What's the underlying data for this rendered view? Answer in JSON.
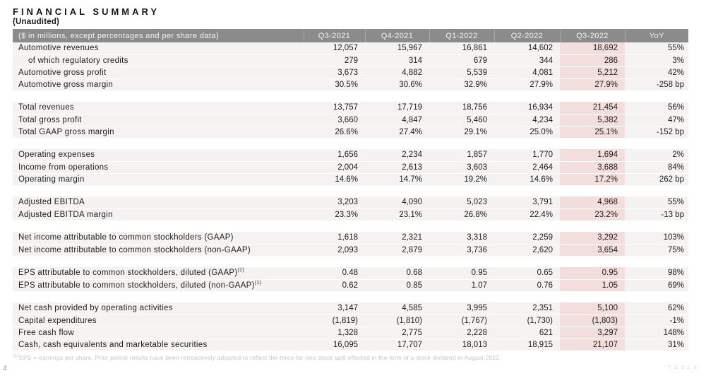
{
  "title": "FINANCIAL SUMMARY",
  "subtitle": "(Unaudited)",
  "table": {
    "label_header": "($ in millions, except percentages and per share data)",
    "columns": [
      "Q3-2021",
      "Q4-2021",
      "Q1-2022",
      "Q2-2022",
      "Q3-2022",
      "YoY"
    ],
    "highlight_column": "Q3-2022",
    "groups": [
      {
        "rows": [
          {
            "label": "Automotive revenues",
            "indent": false,
            "sup": "",
            "values": [
              "12,057",
              "15,967",
              "16,861",
              "14,602",
              "18,692",
              "55%"
            ]
          },
          {
            "label": "of which regulatory credits",
            "indent": true,
            "sup": "",
            "values": [
              "279",
              "314",
              "679",
              "344",
              "286",
              "3%"
            ]
          },
          {
            "label": "Automotive gross profit",
            "indent": false,
            "sup": "",
            "values": [
              "3,673",
              "4,882",
              "5,539",
              "4,081",
              "5,212",
              "42%"
            ]
          },
          {
            "label": "Automotive gross margin",
            "indent": false,
            "sup": "",
            "values": [
              "30.5%",
              "30.6%",
              "32.9%",
              "27.9%",
              "27.9%",
              "-258 bp"
            ]
          }
        ]
      },
      {
        "rows": [
          {
            "label": "Total revenues",
            "indent": false,
            "sup": "",
            "values": [
              "13,757",
              "17,719",
              "18,756",
              "16,934",
              "21,454",
              "56%"
            ]
          },
          {
            "label": "Total gross profit",
            "indent": false,
            "sup": "",
            "values": [
              "3,660",
              "4,847",
              "5,460",
              "4,234",
              "5,382",
              "47%"
            ]
          },
          {
            "label": "Total GAAP gross margin",
            "indent": false,
            "sup": "",
            "values": [
              "26.6%",
              "27.4%",
              "29.1%",
              "25.0%",
              "25.1%",
              "-152 bp"
            ]
          }
        ]
      },
      {
        "rows": [
          {
            "label": "Operating expenses",
            "indent": false,
            "sup": "",
            "values": [
              "1,656",
              "2,234",
              "1,857",
              "1,770",
              "1,694",
              "2%"
            ]
          },
          {
            "label": "Income from operations",
            "indent": false,
            "sup": "",
            "values": [
              "2,004",
              "2,613",
              "3,603",
              "2,464",
              "3,688",
              "84%"
            ]
          },
          {
            "label": "Operating margin",
            "indent": false,
            "sup": "",
            "values": [
              "14.6%",
              "14.7%",
              "19.2%",
              "14.6%",
              "17.2%",
              "262 bp"
            ]
          }
        ]
      },
      {
        "rows": [
          {
            "label": "Adjusted EBITDA",
            "indent": false,
            "sup": "",
            "values": [
              "3,203",
              "4,090",
              "5,023",
              "3,791",
              "4,968",
              "55%"
            ]
          },
          {
            "label": "Adjusted EBITDA margin",
            "indent": false,
            "sup": "",
            "values": [
              "23.3%",
              "23.1%",
              "26.8%",
              "22.4%",
              "23.2%",
              "-13 bp"
            ]
          }
        ]
      },
      {
        "rows": [
          {
            "label": "Net income attributable to common stockholders (GAAP)",
            "indent": false,
            "sup": "",
            "values": [
              "1,618",
              "2,321",
              "3,318",
              "2,259",
              "3,292",
              "103%"
            ]
          },
          {
            "label": "Net income attributable to common stockholders (non-GAAP)",
            "indent": false,
            "sup": "",
            "values": [
              "2,093",
              "2,879",
              "3,736",
              "2,620",
              "3,654",
              "75%"
            ]
          }
        ]
      },
      {
        "rows": [
          {
            "label": "EPS attributable to common stockholders, diluted (GAAP)",
            "indent": false,
            "sup": "(1)",
            "values": [
              "0.48",
              "0.68",
              "0.95",
              "0.65",
              "0.95",
              "98%"
            ]
          },
          {
            "label": "EPS attributable to common stockholders, diluted (non-GAAP)",
            "indent": false,
            "sup": "(1)",
            "values": [
              "0.62",
              "0.85",
              "1.07",
              "0.76",
              "1.05",
              "69%"
            ]
          }
        ]
      },
      {
        "rows": [
          {
            "label": "Net cash provided by operating activities",
            "indent": false,
            "sup": "",
            "values": [
              "3,147",
              "4,585",
              "3,995",
              "2,351",
              "5,100",
              "62%"
            ]
          },
          {
            "label": "Capital expenditures",
            "indent": false,
            "sup": "",
            "values": [
              "(1,819)",
              "(1,810)",
              "(1,767)",
              "(1,730)",
              "(1,803)",
              "-1%"
            ]
          },
          {
            "label": "Free cash flow",
            "indent": false,
            "sup": "",
            "values": [
              "1,328",
              "2,775",
              "2,228",
              "621",
              "3,297",
              "148%"
            ]
          },
          {
            "label": "Cash, cash equivalents and marketable securities",
            "indent": false,
            "sup": "",
            "values": [
              "16,095",
              "17,707",
              "18,013",
              "18,915",
              "21,107",
              "31%"
            ]
          }
        ]
      }
    ]
  },
  "footnote_marker": "(1)",
  "footnote": "EPS = earnings per share. Prior period results have been retroactively adjusted to reflect the three-for-one stock split effected in the form of a stock dividend in August 2022.",
  "page_number": "4",
  "watermark": "TESLA",
  "colors": {
    "header_bg": "#8b8b8b",
    "header_text": "#f6f5f5",
    "row_bg": "#f4f3f2",
    "highlight_bg": "#f2dedd",
    "body_text": "#1d1d1d",
    "footnote_text": "#c6c5c4"
  }
}
